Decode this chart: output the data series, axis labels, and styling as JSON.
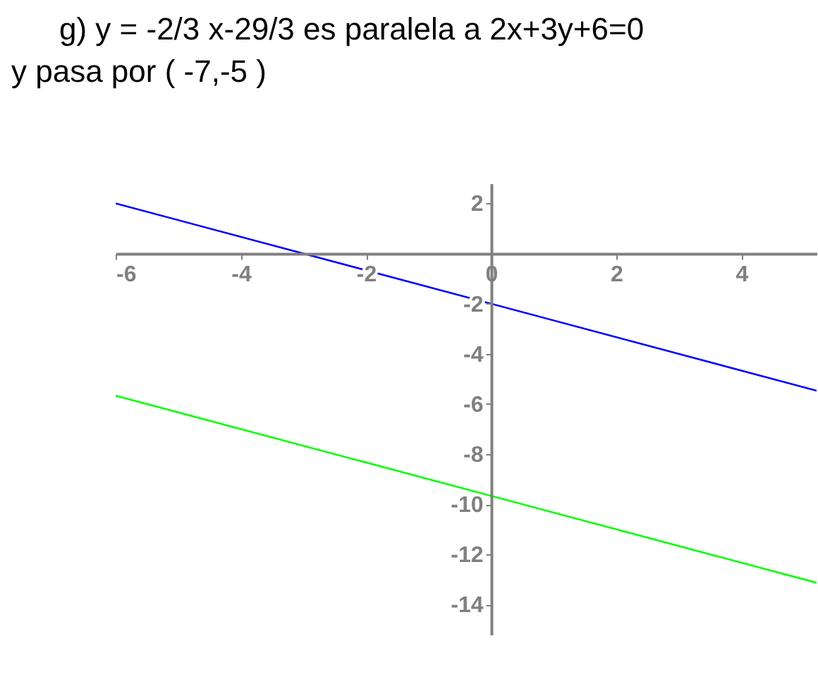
{
  "chart_data": {
    "type": "line",
    "title": "g) y = -2/3 x-29/3 es paralela a 2x+3y+6=0 y pasa por ( -7,-5 )",
    "x": [
      -6,
      5.2
    ],
    "series": [
      {
        "color": "#0000ff",
        "values": [
          2,
          -5.47
        ]
      },
      {
        "color": "#00ff00",
        "values": [
          -5.67,
          -13.13
        ]
      }
    ],
    "xlim": [
      -6,
      5.2
    ],
    "xticks": [
      -6,
      -4,
      -2,
      0,
      2,
      4
    ],
    "ylim": [
      -15.2,
      2.8
    ],
    "yticks": [
      2,
      -2,
      -4,
      -6,
      -8,
      -10,
      -12,
      -14
    ],
    "grid": false,
    "marker": "none",
    "line_style": "solid"
  }
}
